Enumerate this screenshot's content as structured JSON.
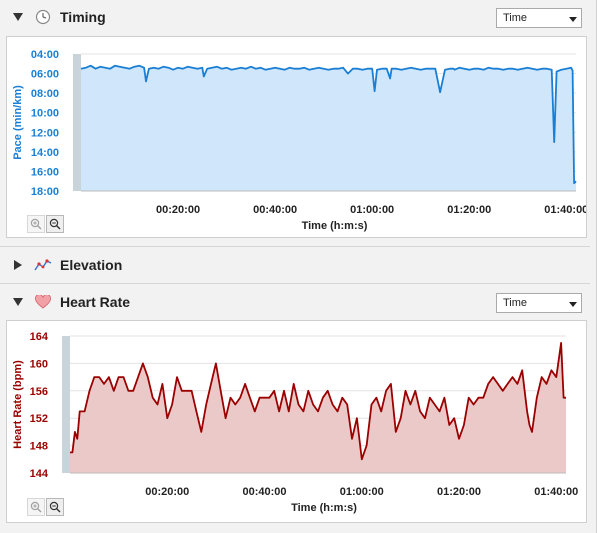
{
  "timing": {
    "title": "Timing",
    "icon": "clock-icon",
    "select_value": "Time",
    "chart_data": {
      "type": "area",
      "title": "",
      "xlabel": "Time (h:m:s)",
      "ylabel": "Pace (min/km)",
      "color": "#1a7fd4",
      "fill": "#cfe6fb",
      "ylim": [
        18,
        4
      ],
      "y_inverted": true,
      "yticks": [
        "04:00",
        "06:00",
        "08:00",
        "10:00",
        "12:00",
        "14:00",
        "16:00",
        "18:00"
      ],
      "xticks": [
        "00:20:00",
        "00:40:00",
        "01:00:00",
        "01:20:00",
        "01:40:00"
      ],
      "xlim_minutes": [
        0,
        102
      ],
      "x_minutes": [
        0,
        1,
        2,
        3,
        4,
        5,
        6,
        7,
        8,
        9,
        10,
        11,
        12,
        13,
        13.4,
        14,
        15,
        16,
        17,
        18,
        19,
        20,
        21,
        22,
        23,
        24,
        25,
        25.3,
        26,
        27,
        28,
        29,
        30,
        31,
        32,
        33,
        34,
        35,
        36,
        37,
        38,
        39,
        40,
        41,
        42,
        43,
        44,
        45,
        46,
        47,
        48,
        49,
        50,
        51,
        52,
        53,
        54,
        55,
        56,
        57,
        58,
        59,
        60,
        60.5,
        61,
        62,
        63,
        63.7,
        64,
        65,
        66,
        67,
        68,
        69,
        70,
        71,
        72,
        73,
        74,
        75,
        76,
        76.8,
        77,
        78,
        79,
        80,
        81,
        82,
        83,
        84,
        85,
        86,
        87,
        88,
        89,
        90,
        91,
        92,
        93,
        94,
        95,
        96,
        97,
        97.5,
        98,
        99,
        100,
        101,
        101.3,
        101.6,
        102
      ],
      "pace_min": [
        5.5,
        5.4,
        5.2,
        5.5,
        5.3,
        5.4,
        5.5,
        5.2,
        5.3,
        5.4,
        5.5,
        5.3,
        5.2,
        5.4,
        6.8,
        5.5,
        5.4,
        5.5,
        5.3,
        5.4,
        5.6,
        5.4,
        5.5,
        5.3,
        5.4,
        5.5,
        5.4,
        6.3,
        5.5,
        5.4,
        5.3,
        5.5,
        5.4,
        5.6,
        5.5,
        5.4,
        5.5,
        5.3,
        5.5,
        5.4,
        5.6,
        5.5,
        5.4,
        5.5,
        5.6,
        5.4,
        5.5,
        5.5,
        5.4,
        5.6,
        5.5,
        5.4,
        5.5,
        5.6,
        5.5,
        5.5,
        5.4,
        6.0,
        5.5,
        5.5,
        5.6,
        5.5,
        5.5,
        7.8,
        5.6,
        5.5,
        5.5,
        6.5,
        5.5,
        5.5,
        5.6,
        5.5,
        5.4,
        5.5,
        5.6,
        5.5,
        5.5,
        5.5,
        7.9,
        5.6,
        5.5,
        5.5,
        5.6,
        5.4,
        5.5,
        5.6,
        5.5,
        5.5,
        5.6,
        5.4,
        5.5,
        5.5,
        5.6,
        5.5,
        5.5,
        5.6,
        5.5,
        5.4,
        5.5,
        5.6,
        5.5,
        5.5,
        5.6,
        13.0,
        5.8,
        5.6,
        5.5,
        5.4,
        5.7,
        17.2,
        17.0
      ]
    },
    "zoom_in": "zoom-in",
    "zoom_out": "zoom-out"
  },
  "elevation": {
    "title": "Elevation",
    "icon": "elevation-chart-icon",
    "collapsed": true
  },
  "heart_rate": {
    "title": "Heart Rate",
    "icon": "heart-icon",
    "select_value": "Time",
    "chart_data": {
      "type": "area",
      "title": "",
      "xlabel": "Time (h:m:s)",
      "ylabel": "Heart Rate (bpm)",
      "color": "#9b0000",
      "fill": "#ecc9c9",
      "ylim": [
        144,
        164
      ],
      "yticks": [
        "164",
        "160",
        "156",
        "152",
        "148",
        "144"
      ],
      "xticks": [
        "00:20:00",
        "00:40:00",
        "01:00:00",
        "01:20:00",
        "01:40:00"
      ],
      "xlim_minutes": [
        0,
        102
      ],
      "x_minutes": [
        0,
        0.5,
        1,
        1.5,
        2,
        3,
        4,
        5,
        6,
        7,
        8,
        9,
        10,
        11,
        12,
        13,
        14,
        15,
        16,
        17,
        18,
        19,
        20,
        21,
        22,
        23,
        24,
        25,
        26,
        27,
        28,
        29,
        30,
        31,
        32,
        33,
        34,
        35,
        36,
        37,
        38,
        39,
        40,
        41,
        42,
        43,
        44,
        45,
        46,
        47,
        48,
        49,
        50,
        51,
        52,
        53,
        54,
        55,
        56,
        57,
        58,
        59,
        60,
        61,
        62,
        63,
        64,
        65,
        66,
        67,
        68,
        69,
        70,
        71,
        72,
        73,
        74,
        75,
        76,
        77,
        78,
        79,
        80,
        81,
        82,
        83,
        84,
        85,
        86,
        87,
        88,
        89,
        90,
        91,
        92,
        93,
        94,
        94.5,
        95,
        96,
        97,
        98,
        99,
        100,
        101,
        101.5,
        102
      ],
      "bpm": [
        147,
        147,
        150,
        149,
        153,
        153,
        156,
        158,
        158,
        157,
        158,
        156,
        158,
        158,
        156,
        156,
        158,
        160,
        158,
        155,
        154,
        157,
        152,
        154,
        158,
        156,
        156,
        156,
        153,
        150,
        154,
        157,
        160,
        156,
        152,
        155,
        154,
        155,
        157,
        155,
        153,
        155,
        155,
        155,
        156,
        153,
        156,
        153,
        157,
        154,
        153,
        156,
        154,
        153,
        155,
        156,
        154,
        153,
        155,
        154,
        149,
        152,
        146,
        148,
        154,
        155,
        153,
        156,
        157,
        150,
        152,
        156,
        154,
        156,
        153,
        152,
        155,
        154,
        153,
        155,
        151,
        152,
        149,
        151,
        155,
        154,
        155,
        155,
        157,
        158,
        157,
        156,
        157,
        158,
        157,
        159,
        153,
        151,
        150,
        155,
        158,
        157,
        159,
        158,
        163,
        155,
        155
      ]
    },
    "zoom_in": "zoom-in",
    "zoom_out": "zoom-out"
  }
}
